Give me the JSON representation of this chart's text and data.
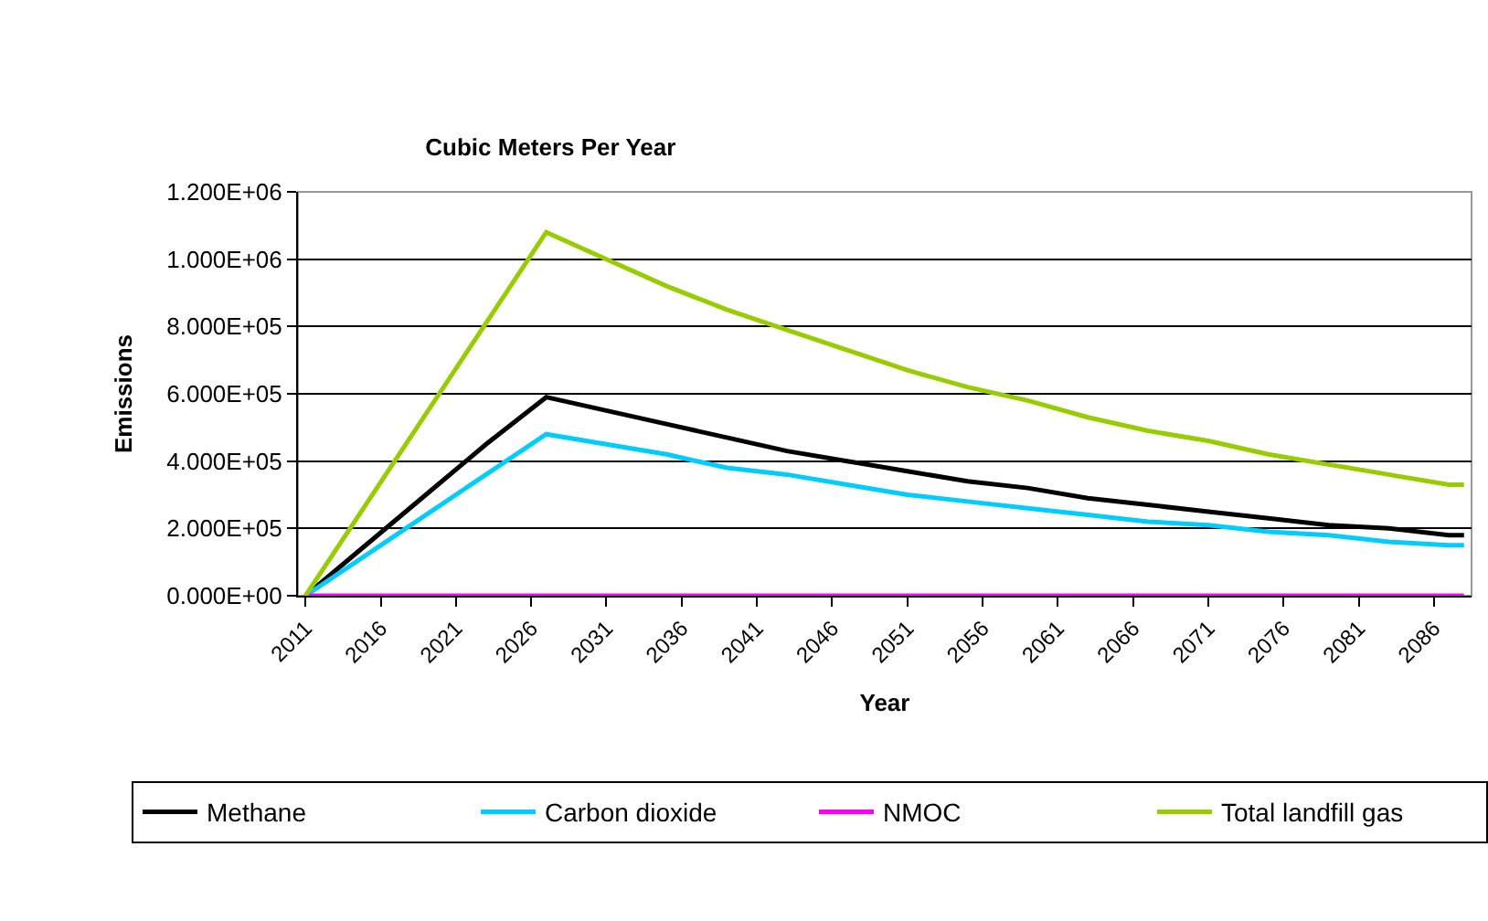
{
  "chart_data": {
    "type": "line",
    "title": "Cubic Meters Per Year",
    "xlabel": "Year",
    "ylabel": "Emissions",
    "x": [
      2011,
      2015,
      2019,
      2023,
      2027,
      2031,
      2035,
      2039,
      2043,
      2047,
      2051,
      2055,
      2059,
      2063,
      2067,
      2071,
      2075,
      2079,
      2083,
      2087,
      2088
    ],
    "series": [
      {
        "name": "Methane",
        "color": "#000000",
        "values": [
          0,
          150000,
          300000,
          450000,
          590000,
          550000,
          510000,
          470000,
          430000,
          400000,
          370000,
          340000,
          320000,
          290000,
          270000,
          250000,
          230000,
          210000,
          200000,
          180000,
          180000
        ]
      },
      {
        "name": "Carbon dioxide",
        "color": "#00ccff",
        "values": [
          0,
          120000,
          240000,
          360000,
          480000,
          450000,
          420000,
          380000,
          360000,
          330000,
          300000,
          280000,
          260000,
          240000,
          220000,
          210000,
          190000,
          180000,
          160000,
          150000,
          150000
        ]
      },
      {
        "name": "NMOC",
        "color": "#ff00ff",
        "values": [
          0,
          0,
          0,
          0,
          0,
          0,
          0,
          0,
          0,
          0,
          0,
          0,
          0,
          0,
          0,
          0,
          0,
          0,
          0,
          0,
          0
        ]
      },
      {
        "name": "Total landfill gas",
        "color": "#99cc00",
        "values": [
          0,
          270000,
          540000,
          810000,
          1080000,
          1000000,
          920000,
          850000,
          790000,
          730000,
          670000,
          620000,
          580000,
          530000,
          490000,
          460000,
          420000,
          390000,
          360000,
          330000,
          330000
        ]
      }
    ],
    "xlim": [
      2010.5,
      2088.5
    ],
    "xticks": [
      2011,
      2016,
      2021,
      2026,
      2031,
      2036,
      2041,
      2046,
      2051,
      2056,
      2061,
      2066,
      2071,
      2076,
      2081,
      2086
    ],
    "ylim": [
      0,
      1200000
    ],
    "yticks": [
      {
        "value": 0,
        "label": "0.000E+00"
      },
      {
        "value": 200000,
        "label": "2.000E+05"
      },
      {
        "value": 400000,
        "label": "4.000E+05"
      },
      {
        "value": 600000,
        "label": "6.000E+05"
      },
      {
        "value": 800000,
        "label": "8.000E+05"
      },
      {
        "value": 1000000,
        "label": "1.000E+06"
      },
      {
        "value": 1200000,
        "label": "1.200E+06"
      }
    ],
    "grid": "y",
    "legend": "bottom",
    "marker": "none",
    "line_style": "solid"
  }
}
